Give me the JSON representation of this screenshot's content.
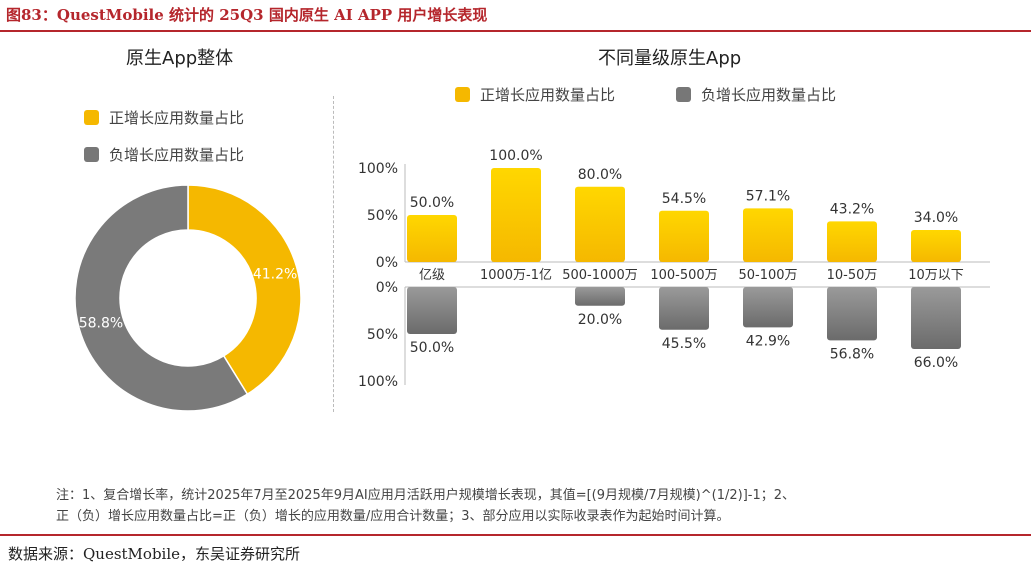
{
  "figure_title": "图83：QuestMobile 统计的 25Q3 国内原生 AI APP 用户增长表现",
  "legend": {
    "positive": "正增长应用数量占比",
    "negative": "负增长应用数量占比"
  },
  "note_lines": [
    "注：1、复合增长率，统计2025年7月至2025年9月AI应用月活跃用户规模增长表现，其值=[(9月规模/7月规模)^(1/2)]-1；2、",
    "正（负）增长应用数量占比=正（负）增长的应用数量/应用合计数量；3、部分应用以实际收录表作为起始时间计算。"
  ],
  "source": "数据来源：QuestMobile，东吴证券研究所",
  "colors": {
    "accent": "#b5262c",
    "positive_top": "#ffd700",
    "positive_bottom": "#f5b800",
    "negative_top": "#9a9a9a",
    "negative_bottom": "#6b6b6b"
  },
  "chart_data": [
    {
      "type": "pie",
      "title": "原生App整体",
      "labels": [
        "正增长应用数量占比",
        "负增长应用数量占比"
      ],
      "values": [
        41.2,
        58.8
      ],
      "value_labels": [
        "41.2%",
        "58.8%"
      ],
      "donut": true,
      "legend_position": "top-left"
    },
    {
      "type": "bar",
      "title": "不同量级原生App",
      "categories": [
        "亿级",
        "1000万-1亿",
        "500-1000万",
        "100-500万",
        "50-100万",
        "10-50万",
        "10万以下"
      ],
      "series": [
        {
          "name": "正增长应用数量占比",
          "values": [
            50.0,
            100.0,
            80.0,
            54.5,
            57.1,
            43.2,
            34.0
          ],
          "labels": [
            "50.0%",
            "100.0%",
            "80.0%",
            "54.5%",
            "57.1%",
            "43.2%",
            "34.0%"
          ]
        },
        {
          "name": "负增长应用数量占比",
          "values": [
            50.0,
            0,
            20.0,
            45.5,
            42.9,
            56.8,
            66.0
          ],
          "labels": [
            "50.0%",
            "",
            "20.0%",
            "45.5%",
            "42.9%",
            "56.8%",
            "66.0%"
          ]
        }
      ],
      "upper_ticks": [
        "100%",
        "50%",
        "0%"
      ],
      "lower_ticks": [
        "0%",
        "50%",
        "100%"
      ],
      "ylim": [
        0,
        100
      ],
      "legend_position": "top",
      "grid": false
    }
  ]
}
